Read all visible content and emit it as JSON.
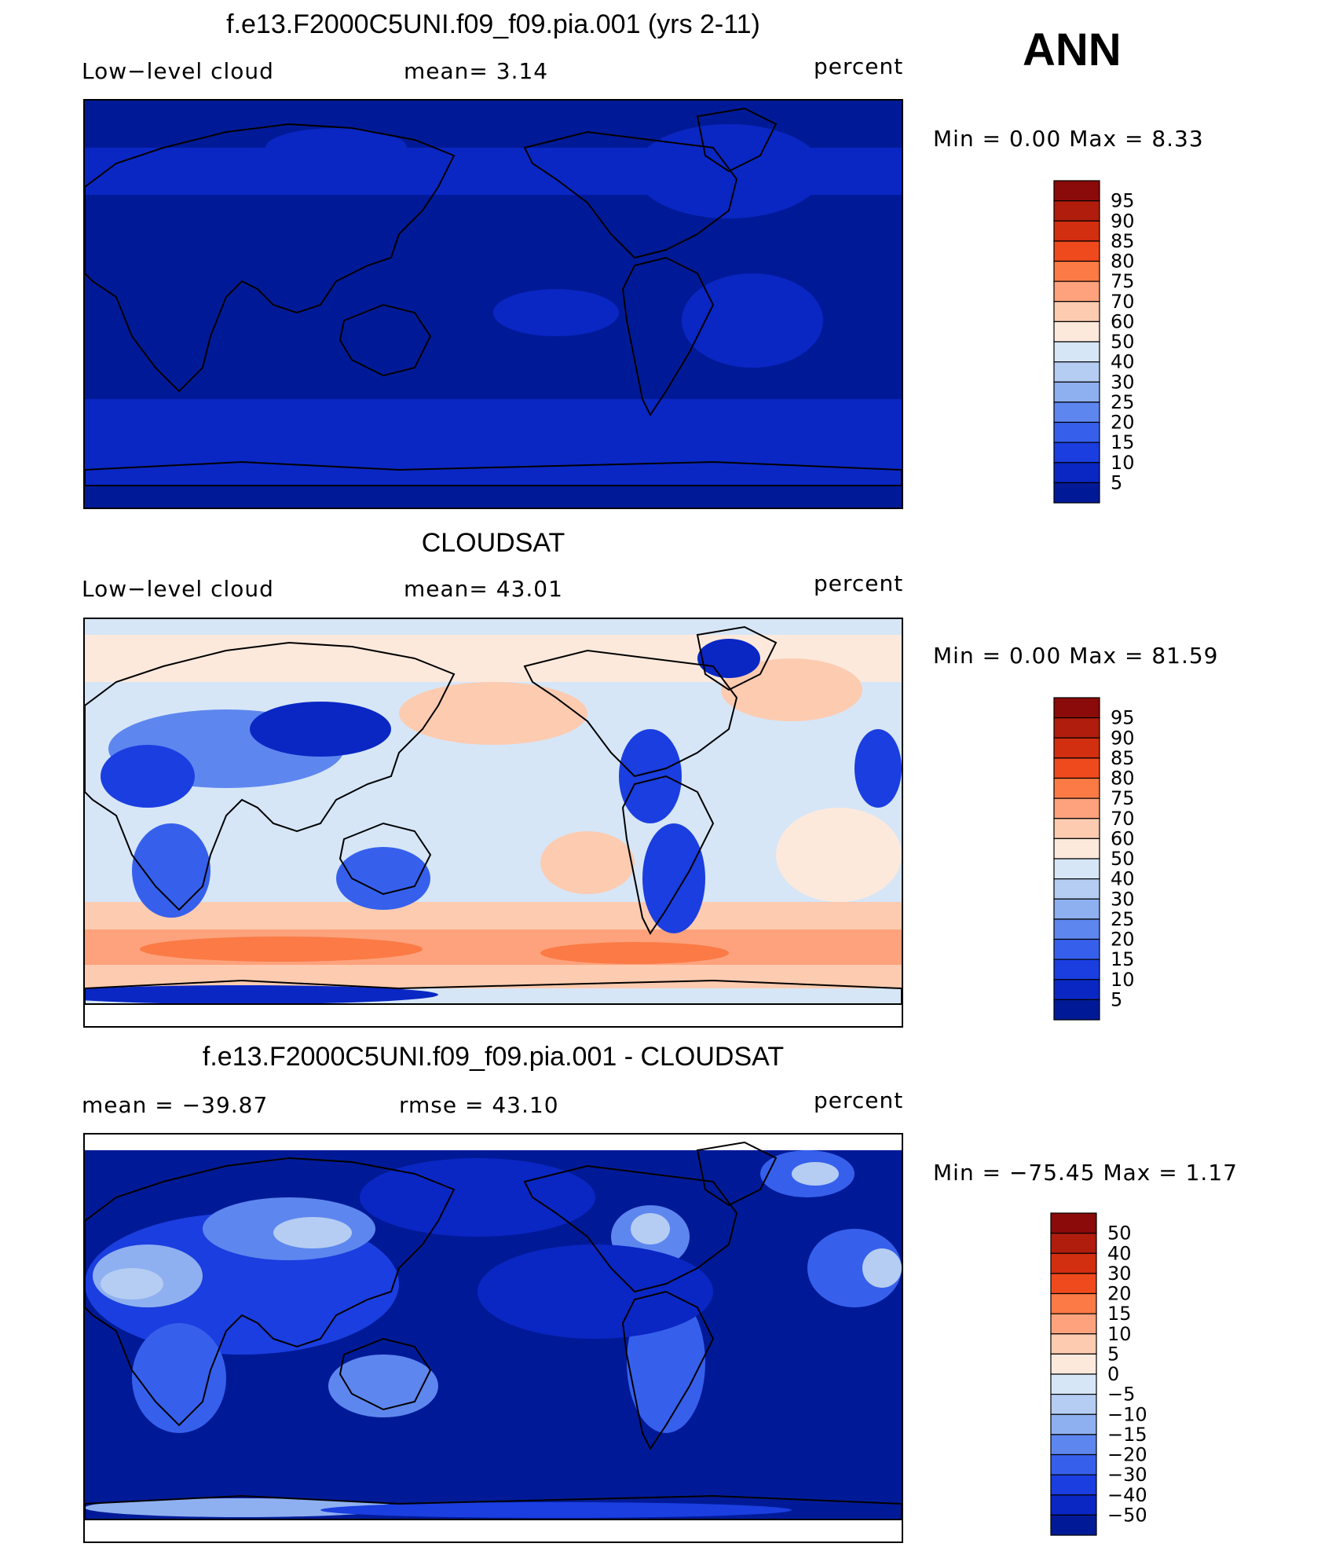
{
  "season": "ANN",
  "chart_data": [
    {
      "type": "heatmap",
      "title": "f.e13.F2000C5UNI.f09_f09.pia.001 (yrs 2-11)",
      "left_label": "Low−level  cloud",
      "center_label": "mean=    3.14",
      "right_label": "percent",
      "min_max": "Min  =      0.00  Max  =       8.33",
      "min": 0.0,
      "max": 8.33,
      "mean": 3.14,
      "units": "percent",
      "colorbar_ticks": [
        "95",
        "90",
        "85",
        "80",
        "75",
        "70",
        "60",
        "50",
        "40",
        "30",
        "25",
        "20",
        "15",
        "10",
        "5"
      ],
      "colorbar_colors": [
        "#8b0a0a",
        "#b01d0d",
        "#d22e10",
        "#ef4a1e",
        "#fb7a45",
        "#fda27c",
        "#fdcbb0",
        "#fde9dc",
        "#d6e6f7",
        "#b5cdf2",
        "#8fb0f0",
        "#5e86ef",
        "#3660ec",
        "#1b3ee0",
        "#0a27c4",
        "#001a97"
      ],
      "field": "model"
    },
    {
      "type": "heatmap",
      "title": "CLOUDSAT",
      "left_label": "Low−level  cloud",
      "center_label": "mean=   43.01",
      "right_label": "percent",
      "min_max": "Min  =      0.00  Max  =     81.59",
      "min": 0.0,
      "max": 81.59,
      "mean": 43.01,
      "units": "percent",
      "colorbar_ticks": [
        "95",
        "90",
        "85",
        "80",
        "75",
        "70",
        "60",
        "50",
        "40",
        "30",
        "25",
        "20",
        "15",
        "10",
        "5"
      ],
      "colorbar_colors": [
        "#8b0a0a",
        "#b01d0d",
        "#d22e10",
        "#ef4a1e",
        "#fb7a45",
        "#fda27c",
        "#fdcbb0",
        "#fde9dc",
        "#d6e6f7",
        "#b5cdf2",
        "#8fb0f0",
        "#5e86ef",
        "#3660ec",
        "#1b3ee0",
        "#0a27c4",
        "#001a97"
      ],
      "field": "obs"
    },
    {
      "type": "heatmap",
      "title": "f.e13.F2000C5UNI.f09_f09.pia.001 - CLOUDSAT",
      "left_label": "mean  =  −39.87",
      "center_label": "rmse  =    43.10",
      "right_label": "percent",
      "min_max": "Min  =  −75.45  Max  =      1.17",
      "min": -75.45,
      "max": 1.17,
      "mean": -39.87,
      "rmse": 43.1,
      "units": "percent",
      "colorbar_ticks": [
        "50",
        "40",
        "30",
        "20",
        "15",
        "10",
        "5",
        "0",
        "−5",
        "−10",
        "−15",
        "−20",
        "−30",
        "−40",
        "−50"
      ],
      "colorbar_colors": [
        "#8b0a0a",
        "#b01d0d",
        "#d22e10",
        "#ef4a1e",
        "#fb7a45",
        "#fda27c",
        "#fdcbb0",
        "#fde9dc",
        "#d6e6f7",
        "#b5cdf2",
        "#8fb0f0",
        "#5e86ef",
        "#3660ec",
        "#1b3ee0",
        "#0a27c4",
        "#001a97"
      ],
      "field": "diff"
    }
  ]
}
